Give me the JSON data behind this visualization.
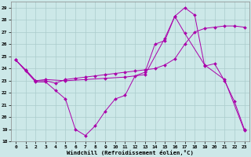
{
  "xlabel": "Windchill (Refroidissement éolien,°C)",
  "background_color": "#cce8e8",
  "grid_color": "#aacccc",
  "line_color": "#aa00aa",
  "x_ticks": [
    0,
    1,
    2,
    3,
    4,
    5,
    6,
    7,
    8,
    9,
    10,
    11,
    12,
    13,
    14,
    15,
    16,
    17,
    18,
    19,
    20,
    21,
    22,
    23
  ],
  "ylim": [
    18,
    29.5
  ],
  "yticks": [
    18,
    19,
    20,
    21,
    22,
    23,
    24,
    25,
    26,
    27,
    28,
    29
  ],
  "series": [
    {
      "x": [
        0,
        1,
        2,
        3,
        4,
        5,
        6,
        7,
        8,
        9,
        10,
        11,
        12,
        13,
        14,
        15,
        16,
        17,
        18,
        19,
        20,
        21,
        22,
        23
      ],
      "y": [
        24.7,
        23.8,
        22.9,
        22.9,
        22.2,
        21.5,
        19.0,
        18.5,
        19.3,
        20.5,
        21.5,
        21.8,
        23.4,
        23.7,
        26.0,
        26.3,
        28.3,
        29.0,
        28.4,
        24.2,
        24.4,
        23.0,
        21.3,
        19.0
      ]
    },
    {
      "x": [
        0,
        1,
        2,
        3,
        4,
        5,
        6,
        7,
        8,
        9,
        10,
        11,
        12,
        13,
        14,
        15,
        16,
        17,
        18,
        19,
        20,
        21,
        22,
        23
      ],
      "y": [
        24.7,
        23.9,
        23.0,
        23.0,
        22.8,
        23.1,
        23.2,
        23.3,
        23.4,
        23.5,
        23.6,
        23.7,
        23.8,
        23.9,
        24.0,
        24.3,
        24.8,
        26.0,
        27.0,
        27.3,
        27.4,
        27.5,
        27.5,
        27.4
      ]
    },
    {
      "x": [
        0,
        2,
        3,
        5,
        7,
        9,
        11,
        13,
        15,
        16,
        17,
        19,
        21,
        23
      ],
      "y": [
        24.7,
        23.0,
        23.1,
        23.0,
        23.1,
        23.2,
        23.3,
        23.5,
        26.5,
        28.3,
        26.9,
        24.3,
        23.1,
        18.9
      ]
    }
  ]
}
